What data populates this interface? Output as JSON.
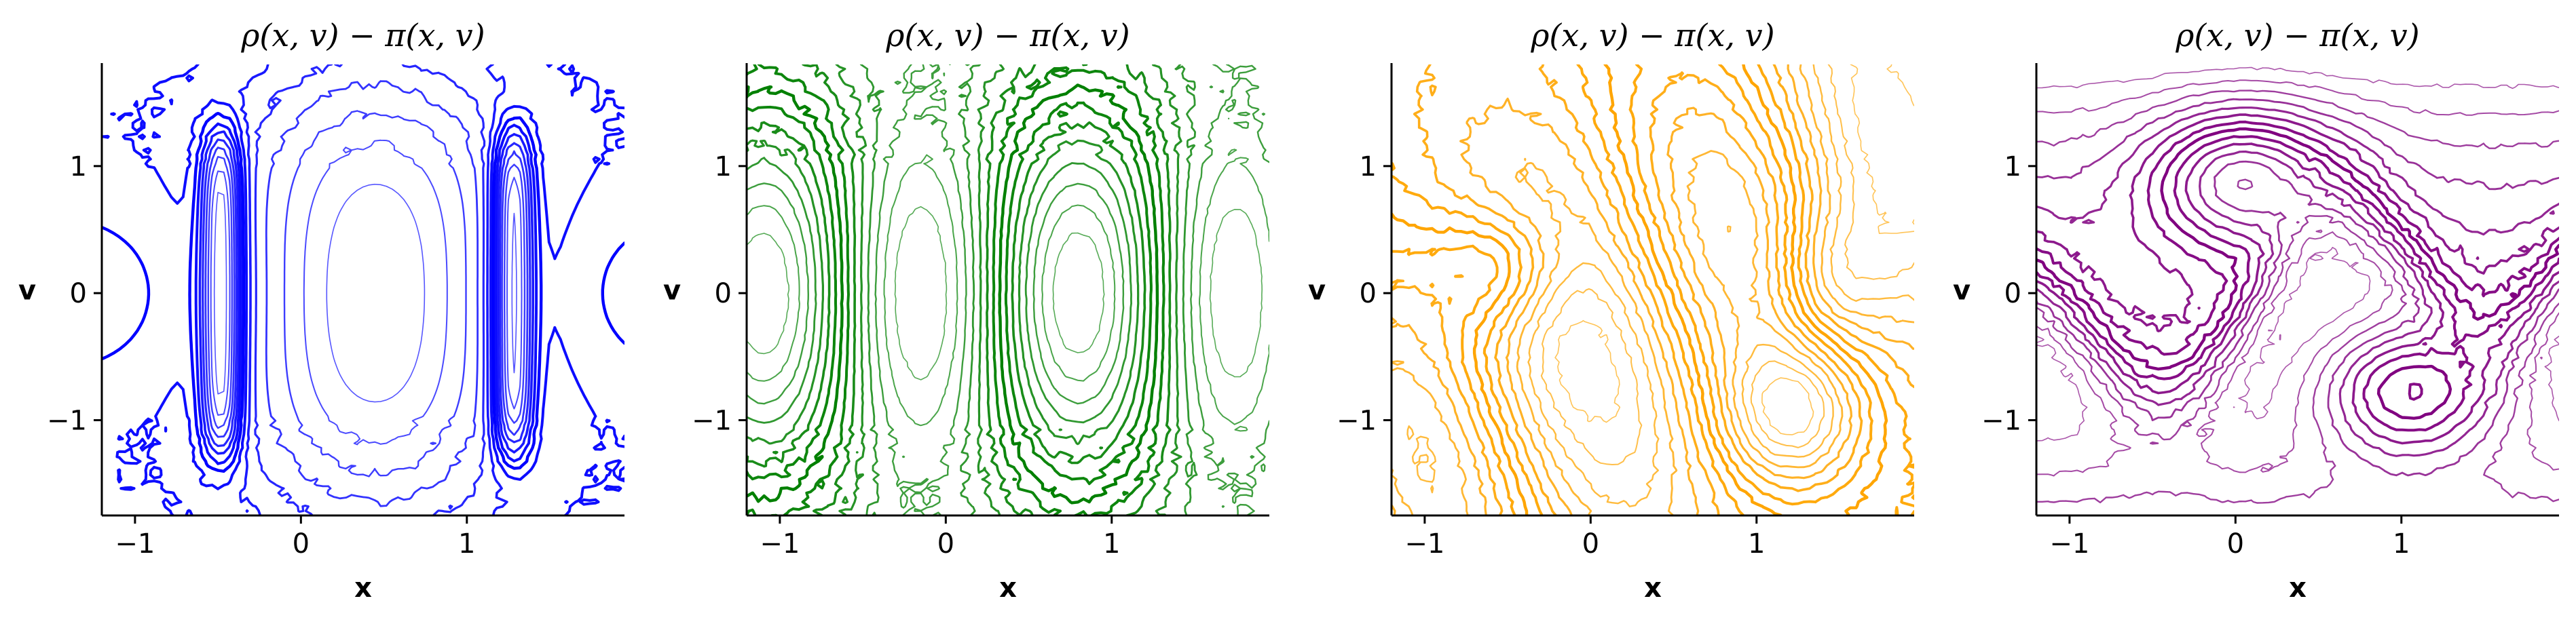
{
  "chart_data": [
    {
      "type": "contour",
      "title": "ρ(x, v) − π(x, v)",
      "xlabel": "x",
      "ylabel": "v",
      "xlim": [
        -1.2,
        1.95
      ],
      "ylim": [
        -1.75,
        1.8
      ],
      "xticks": [
        "−1",
        "0",
        "1"
      ],
      "xtick_values": [
        -1,
        0,
        1
      ],
      "yticks": [
        "1",
        "0",
        "−1"
      ],
      "ytick_values": [
        1,
        0,
        -1
      ],
      "color": "#0000ff",
      "pattern": "vertical-barrier",
      "grid": false,
      "legend": "none"
    },
    {
      "type": "contour",
      "title": "ρ(x, v) − π(x, v)",
      "xlabel": "x",
      "ylabel": "v",
      "xlim": [
        -1.2,
        1.95
      ],
      "ylim": [
        -1.75,
        1.8
      ],
      "xticks": [
        "−1",
        "0",
        "1"
      ],
      "xtick_values": [
        -1,
        0,
        1
      ],
      "yticks": [
        "1",
        "0",
        "−1"
      ],
      "ytick_values": [
        1,
        0,
        -1
      ],
      "color": "#008000",
      "pattern": "oval-cells",
      "grid": false,
      "legend": "none"
    },
    {
      "type": "contour",
      "title": "ρ(x, v) − π(x, v)",
      "xlabel": "x",
      "ylabel": "v",
      "xlim": [
        -1.2,
        1.95
      ],
      "ylim": [
        -1.75,
        1.8
      ],
      "xticks": [
        "−1",
        "0",
        "1"
      ],
      "xtick_values": [
        -1,
        0,
        1
      ],
      "yticks": [
        "1",
        "0",
        "−1"
      ],
      "ytick_values": [
        1,
        0,
        -1
      ],
      "color": "#ffa500",
      "pattern": "diagonal-swirl",
      "grid": false,
      "legend": "none"
    },
    {
      "type": "contour",
      "title": "ρ(x, v) − π(x, v)",
      "xlabel": "x",
      "ylabel": "v",
      "xlim": [
        -1.2,
        1.95
      ],
      "ylim": [
        -1.75,
        1.8
      ],
      "xticks": [
        "−1",
        "0",
        "1"
      ],
      "xtick_values": [
        -1,
        0,
        1
      ],
      "yticks": [
        "1",
        "0",
        "−1"
      ],
      "ytick_values": [
        1,
        0,
        -1
      ],
      "color": "#800080",
      "pattern": "s-shaped-band",
      "grid": false,
      "legend": "none"
    }
  ]
}
